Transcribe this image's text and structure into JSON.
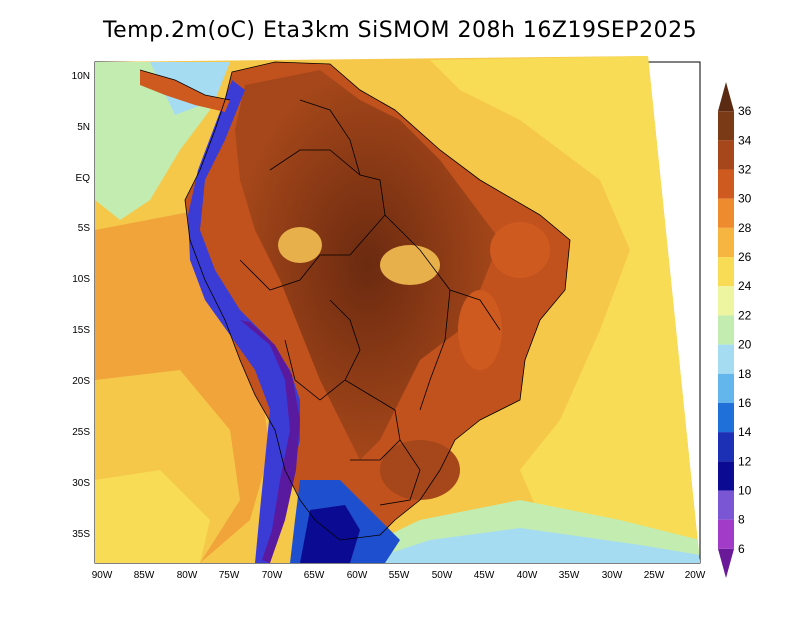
{
  "title": "Temp.2m(oC) Eta3km SiSMOM 208h 16Z19SEP2025",
  "lat_labels": [
    "10N",
    "5N",
    "EQ",
    "5S",
    "10S",
    "15S",
    "20S",
    "25S",
    "30S",
    "35S"
  ],
  "lon_labels": [
    "90W",
    "85W",
    "80W",
    "75W",
    "70W",
    "65W",
    "60W",
    "55W",
    "50W",
    "45W",
    "40W",
    "35W",
    "30W",
    "25W",
    "20W"
  ],
  "colorbar": {
    "labels": [
      "36",
      "34",
      "32",
      "30",
      "28",
      "26",
      "24",
      "22",
      "20",
      "18",
      "16",
      "14",
      "12",
      "10",
      "8",
      "6"
    ],
    "colors": [
      "#5a2a12",
      "#7a3a16",
      "#a5471a",
      "#cf5a1f",
      "#ee8b2e",
      "#f6b440",
      "#f8dc55",
      "#eef5a0",
      "#c3ecb0",
      "#a6dcf2",
      "#62b6ec",
      "#1f70d8",
      "#1b30b4",
      "#0a0a92",
      "#7a56d4",
      "#a23cc8",
      "#6a1a98"
    ]
  },
  "map_colors": {
    "ocean_far": "#f5c84a",
    "ocean_warm": "#f0a43a",
    "ocean_cool": "#f8e06a",
    "ocean_cold": "#b9e6a8",
    "land_hot": "#8a3a14",
    "land_warm": "#c2521d",
    "andes_cold": "#3b3bd6",
    "andes_high": "#5a1aa0",
    "patagonia": "#1e4fcf",
    "highland": "#e7b04a"
  }
}
